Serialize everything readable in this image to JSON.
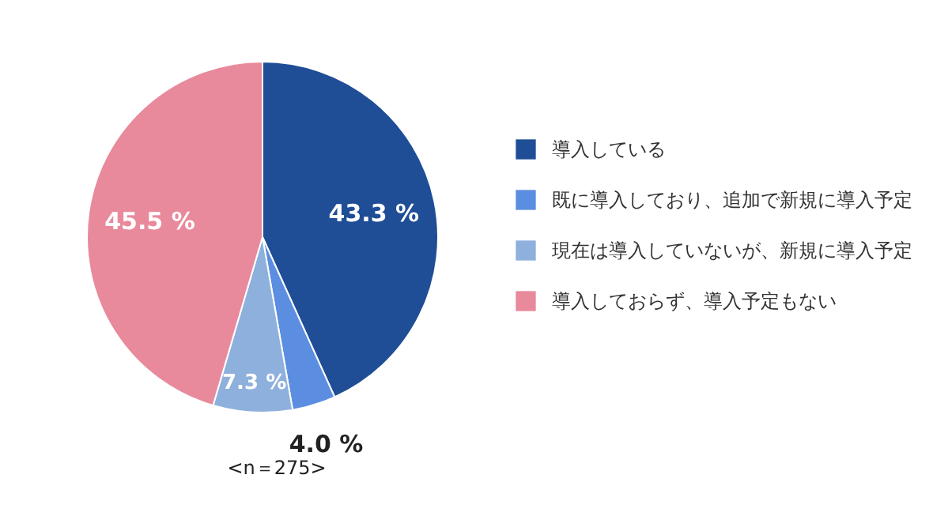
{
  "chart_data": {
    "type": "pie",
    "categories": [
      "導入している",
      "既に導入しており、追加で新規に導入予定",
      "現在は導入していないが、新規に導入予定",
      "導入しておらず、導入予定もない"
    ],
    "values": [
      43.3,
      4.0,
      7.3,
      45.5
    ],
    "colors": [
      "#1f4e96",
      "#5b8ee0",
      "#8eb0dd",
      "#e88a9c"
    ],
    "value_labels": [
      "43.3 %",
      "4.0 %",
      "7.3 %",
      "45.5 %"
    ],
    "legend": "right",
    "annotations": [
      "<n＝275>"
    ]
  }
}
